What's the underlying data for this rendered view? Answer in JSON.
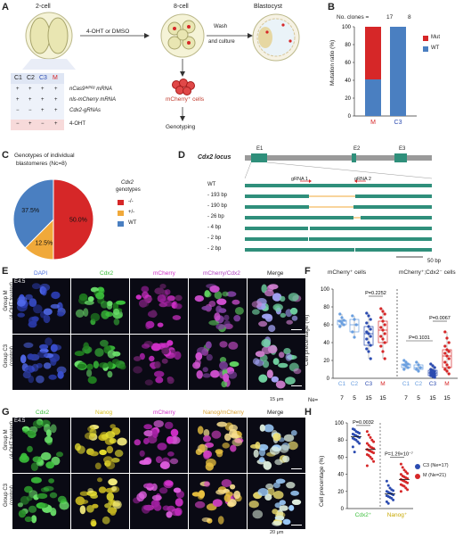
{
  "panels": {
    "A": "A",
    "B": "B",
    "C": "C",
    "D": "D",
    "E": "E",
    "F": "F",
    "G": "G",
    "H": "H"
  },
  "panel_a": {
    "stages": [
      "2-cell",
      "8-cell",
      "Blastocyst"
    ],
    "treatment": "4-OHT or DMSO",
    "wash": [
      "Wash",
      "and culture"
    ],
    "mcherry_cells": "mCherry⁺ cells",
    "genotyping": "Genotyping",
    "table_headers": [
      "C1",
      "C2",
      "C3",
      "M"
    ],
    "table_rows": [
      {
        "marks": [
          "+",
          "+",
          "+",
          "+"
        ],
        "label": "nCas9ᵂᴾᴿ² mRNA"
      },
      {
        "marks": [
          "+",
          "+",
          "+",
          "+"
        ],
        "label": "nls-mCherry mRNA"
      },
      {
        "marks": [
          "−",
          "−",
          "+",
          "+"
        ],
        "label": "Cdx2-gRNAs"
      },
      {
        "marks": [
          "−",
          "+",
          "−",
          "+"
        ],
        "label": "4-OHT"
      }
    ]
  },
  "panel_b": {
    "no_clones_label": "No. clones =",
    "clone_counts": [
      "17",
      "8"
    ],
    "legend": [
      "Mut",
      "WT"
    ],
    "colors": {
      "Mut": "#d62728",
      "WT": "#4a7fc1"
    }
  },
  "panel_c": {
    "title": [
      "Genotypes of individual",
      "blastomeres (Nc=8)"
    ],
    "legend_title": [
      "Cdx2",
      "genotypes"
    ],
    "legend": [
      "-/-",
      "+/-",
      "WT"
    ],
    "colors": [
      "#d62728",
      "#f0a93a",
      "#4a7fc1"
    ]
  },
  "panel_d": {
    "locus": "Cdx2 locus",
    "exons": [
      "E1",
      "E2",
      "E3"
    ],
    "grnas": [
      "gRNA 1",
      "gRNA 2"
    ],
    "alleles": [
      "WT",
      "- 193 bp",
      "- 190 bp",
      "- 26 bp",
      "- 4 bp",
      "- 2 bp",
      "- 2 bp"
    ],
    "scale": "50 bp"
  },
  "panel_e": {
    "channels": [
      "DAPI",
      "Cdx2",
      "mCherry",
      "mCherry/Cdx2",
      "Merge"
    ],
    "stage": "E4.5",
    "rows": [
      [
        "Group M",
        "(4-OHT treated)"
      ],
      [
        "Group C3",
        "(control)"
      ]
    ],
    "scale": "15 μm"
  },
  "panel_f": {
    "groups": [
      "mCherry⁺ cells",
      "mCherry⁺;Cdx2⁻ cells"
    ],
    "ylabel": "Cell precentage (%)",
    "categories": [
      "C1",
      "C2",
      "C3",
      "M"
    ],
    "ne_label": "Ne=",
    "ne": [
      "7",
      "5",
      "15",
      "15"
    ],
    "pvalues": [
      "P=0.2252",
      "P=0.1031",
      "P=0.0067"
    ]
  },
  "panel_g": {
    "channels": [
      "Cdx2",
      "Nanog",
      "mCherry",
      "Nanog/mCherry",
      "Merge"
    ],
    "stage": "E4.5",
    "rows": [
      [
        "Group M",
        "(4-OHT treated)"
      ],
      [
        "Group C3",
        "(control)"
      ]
    ],
    "scale": "20 μm"
  },
  "panel_h": {
    "ylabel": "Cell precentage (%)",
    "categories": [
      "Cdx2⁺",
      "Nanog⁺"
    ],
    "pvalues": [
      "P=0.0032",
      "P=1.29×10⁻⁷"
    ],
    "legend": [
      "C3 (Ne=17)",
      "M (Ne=21)"
    ]
  },
  "chart_data": [
    {
      "type": "bar",
      "categories": [
        "M",
        "C3"
      ],
      "series": [
        {
          "name": "Mut",
          "values": [
            59,
            0
          ]
        },
        {
          "name": "WT",
          "values": [
            41,
            100
          ]
        }
      ],
      "ylabel": "Mutation ratio (%)",
      "ylim": [
        0,
        100
      ],
      "yticks": [
        0,
        20,
        40,
        60,
        80,
        100
      ]
    },
    {
      "type": "pie",
      "categories": [
        "-/-",
        "+/-",
        "WT"
      ],
      "values": [
        50.0,
        12.5,
        37.5
      ],
      "labels": [
        "50.0%",
        "12.5%",
        "37.5%"
      ]
    },
    {
      "type": "scatter",
      "ylabel": "Cell precentage (%)",
      "ylim": [
        0,
        100
      ],
      "yticks": [
        0,
        20,
        40,
        60,
        80,
        100
      ],
      "series": [
        {
          "group": "mCherry+",
          "cat": "C1",
          "values": [
            72,
            68,
            65,
            64,
            62,
            60,
            58
          ]
        },
        {
          "group": "mCherry+",
          "cat": "C2",
          "values": [
            70,
            66,
            60,
            52,
            46
          ]
        },
        {
          "group": "mCherry+",
          "cat": "C3",
          "values": [
            73,
            70,
            66,
            62,
            58,
            55,
            52,
            50,
            47,
            44,
            40,
            37,
            33,
            30,
            22
          ]
        },
        {
          "group": "mCherry+",
          "cat": "M",
          "values": [
            78,
            75,
            72,
            68,
            64,
            60,
            57,
            54,
            50,
            47,
            44,
            40,
            36,
            30,
            22
          ]
        },
        {
          "group": "mCherry+;Cdx2-",
          "cat": "C1",
          "values": [
            20,
            18,
            16,
            15,
            14,
            12,
            10
          ]
        },
        {
          "group": "mCherry+;Cdx2-",
          "cat": "C2",
          "values": [
            18,
            15,
            12,
            10,
            8
          ]
        },
        {
          "group": "mCherry+;Cdx2-",
          "cat": "C3",
          "values": [
            16,
            14,
            12,
            10,
            9,
            8,
            7,
            6,
            5,
            5,
            4,
            3,
            3,
            2,
            1
          ]
        },
        {
          "group": "mCherry+;Cdx2-",
          "cat": "M",
          "values": [
            52,
            45,
            40,
            36,
            32,
            30,
            28,
            25,
            22,
            18,
            15,
            12,
            10,
            8,
            5
          ]
        }
      ]
    },
    {
      "type": "scatter",
      "ylabel": "Cell precentage (%)",
      "ylim": [
        0,
        100
      ],
      "yticks": [
        0,
        20,
        40,
        60,
        80,
        100
      ],
      "series": [
        {
          "name": "C3 (Ne=17)",
          "cat": "Cdx2+",
          "values": [
            93,
            92,
            90,
            89,
            88,
            87,
            86,
            85,
            84,
            83,
            82,
            81,
            80,
            78,
            76,
            72,
            66
          ]
        },
        {
          "name": "M (Ne=21)",
          "cat": "Cdx2+",
          "values": [
            90,
            86,
            83,
            80,
            78,
            76,
            74,
            72,
            71,
            70,
            69,
            68,
            67,
            66,
            65,
            63,
            62,
            60,
            58,
            55,
            50
          ]
        },
        {
          "name": "C3 (Ne=17)",
          "cat": "Nanog+",
          "values": [
            32,
            27,
            24,
            22,
            21,
            20,
            19,
            18,
            17,
            16,
            15,
            14,
            13,
            12,
            10,
            8,
            6
          ]
        },
        {
          "name": "M (Ne=21)",
          "cat": "Nanog+",
          "values": [
            52,
            48,
            45,
            43,
            41,
            40,
            38,
            37,
            36,
            35,
            34,
            33,
            32,
            31,
            30,
            28,
            27,
            26,
            24,
            22,
            20
          ]
        }
      ]
    }
  ]
}
